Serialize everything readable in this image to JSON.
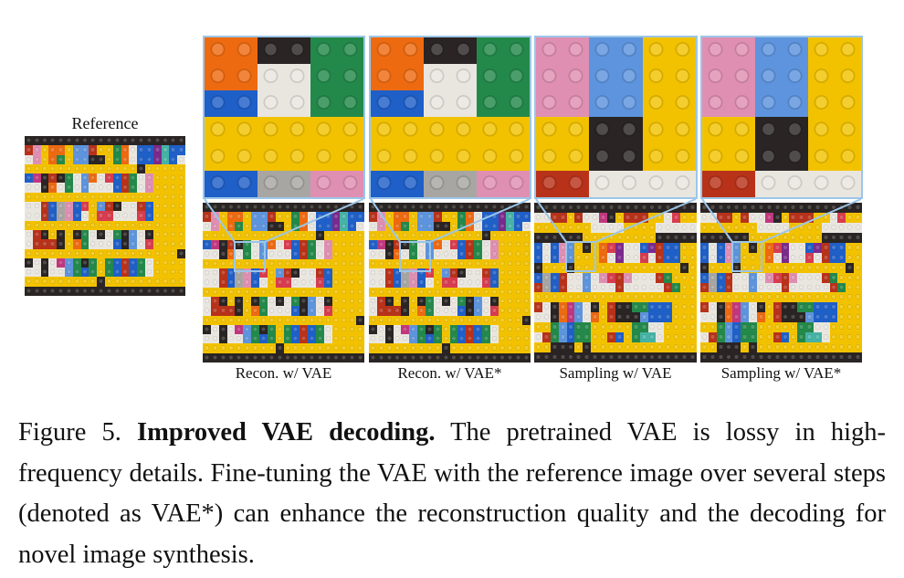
{
  "figure": {
    "reference_label": "Reference",
    "panels": [
      {
        "label": "Recon. w/ VAE"
      },
      {
        "label": "Recon. w/ VAE*"
      },
      {
        "label": "Sampling w/ VAE"
      },
      {
        "label": "Sampling w/ VAE*"
      }
    ],
    "zoom_border_color": "#9cc6e8"
  },
  "caption": {
    "prefix": "Figure 5. ",
    "title": "Improved VAE decoding.",
    "body": " The pretrained VAE is lossy in high-frequency details. Fine-tuning the VAE with the reference image over several steps (denoted as VAE*) can enhance the reconstruction quality and the decoding for novel image synthesis."
  }
}
